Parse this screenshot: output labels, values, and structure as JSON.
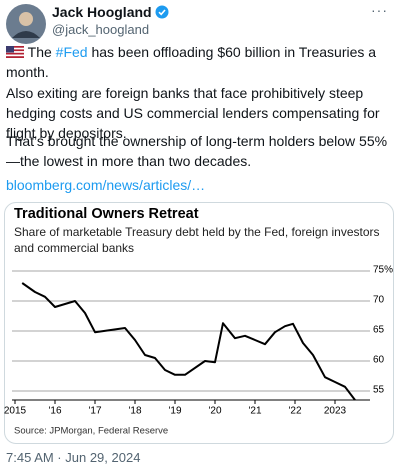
{
  "tweet": {
    "author": "Jack Hoogland",
    "handle": "@jack_hoogland",
    "para1_before": "The ",
    "hashtag": "#Fed",
    "para1_after": " has been offloading $60 billion in Treasuries a month.",
    "para2": "Also exiting are foreign banks that face prohibitively steep hedging costs and US commercial lenders compensating for flight by depositors.",
    "para3": "That’s brought the ownership of long-term holders below 55%—the lowest in more than two decades.",
    "link": "bloomberg.com/news/articles/…",
    "timestamp": "7:45 AM · Jun 29, 2024"
  },
  "chart_data": {
    "type": "line",
    "title": "Traditional Owners Retreat",
    "subtitle": "Share of marketable Treasury debt held by the Fed, foreign investors and commercial banks",
    "source": "Source: JPMorgan, Federal Reserve",
    "x": [
      2015.18,
      2015.5,
      2015.75,
      2016.0,
      2016.5,
      2016.75,
      2017.0,
      2017.75,
      2018.0,
      2018.25,
      2018.5,
      2018.75,
      2019.0,
      2019.25,
      2019.75,
      2020.0,
      2020.2,
      2020.5,
      2020.75,
      2021.0,
      2021.25,
      2021.5,
      2021.75,
      2021.95,
      2022.2,
      2022.45,
      2022.75,
      2023.0,
      2023.25,
      2023.5
    ],
    "series": [
      {
        "color": "#000000",
        "values": [
          73.0,
          71.5,
          70.7,
          69.0,
          70.0,
          68.0,
          64.8,
          65.5,
          63.5,
          61.0,
          60.5,
          58.5,
          57.7,
          57.7,
          60.0,
          59.8,
          66.3,
          63.8,
          64.2,
          63.5,
          62.8,
          64.8,
          65.8,
          66.2,
          63.0,
          61.0,
          57.3,
          56.5,
          55.7,
          53.5
        ]
      }
    ],
    "xlim": [
      2014.925,
      2023.75
    ],
    "xticks": [
      2015,
      {
        "value": 2016,
        "label": "'16"
      },
      {
        "value": 2017,
        "label": "'17"
      },
      {
        "value": 2018,
        "label": "'18"
      },
      {
        "value": 2019,
        "label": "'19"
      },
      {
        "value": 2020,
        "label": "'20"
      },
      {
        "value": 2021,
        "label": "'21"
      },
      {
        "value": 2022,
        "label": "'22"
      },
      2023
    ],
    "ylim": [
      53.5,
      76.5
    ],
    "yticks": [
      55,
      60,
      65,
      70,
      {
        "value": 75,
        "label": "75%"
      }
    ],
    "grid": true
  }
}
